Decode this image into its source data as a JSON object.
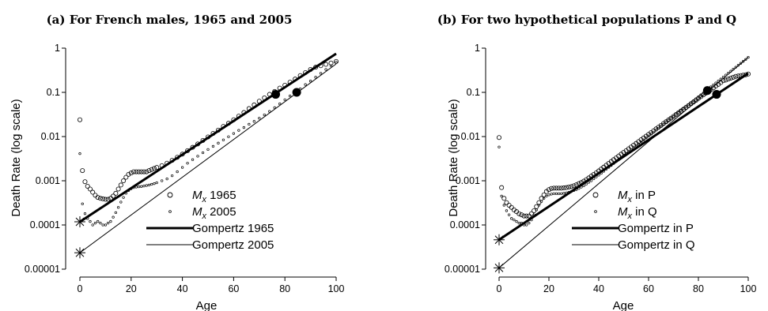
{
  "chart_data": [
    {
      "type": "scatter",
      "title": "(a) For French males, 1965 and 2005",
      "xlabel": "Age",
      "ylabel": "Death Rate (log scale)",
      "y_scale": "log",
      "xlim": [
        0,
        100
      ],
      "ylim": [
        1e-05,
        1
      ],
      "xticks": [
        "0",
        "20",
        "40",
        "60",
        "80",
        "100"
      ],
      "yticks": [
        "0.00001",
        "0.0001",
        "0.001",
        "0.01",
        "0.1",
        "1"
      ],
      "grid": false,
      "legend_position": "bottom-right",
      "legend": [
        {
          "sym": "M",
          "sub": "x",
          "rest": " 1965",
          "marker": "open-circle-large"
        },
        {
          "sym": "M",
          "sub": "x",
          "rest": " 2005",
          "marker": "open-circle-small"
        },
        {
          "label": "Gompertz 1965",
          "marker": "thick-line"
        },
        {
          "label": "Gompertz 2005",
          "marker": "thin-line"
        }
      ],
      "series": [
        {
          "name": "Mx 1965",
          "style": "open-circle-large",
          "x": [
            0,
            1,
            2,
            3,
            4,
            5,
            6,
            7,
            8,
            9,
            10,
            11,
            12,
            13,
            14,
            15,
            16,
            17,
            18,
            19,
            20,
            21,
            22,
            23,
            24,
            25,
            26,
            27,
            28,
            29,
            30,
            32,
            34,
            36,
            38,
            40,
            42,
            44,
            46,
            48,
            50,
            52,
            54,
            56,
            58,
            60,
            62,
            64,
            66,
            68,
            70,
            72,
            74,
            76,
            78,
            80,
            82,
            84,
            86,
            88,
            90,
            92,
            94,
            96,
            98,
            100
          ],
          "y": [
            0.024,
            0.0017,
            0.00095,
            0.00075,
            0.00065,
            0.00055,
            0.00047,
            0.00042,
            0.0004,
            0.00039,
            0.00038,
            0.00038,
            0.0004,
            0.00045,
            0.00052,
            0.00065,
            0.0008,
            0.001,
            0.0012,
            0.0014,
            0.0015,
            0.0016,
            0.0016,
            0.0016,
            0.0016,
            0.0016,
            0.0016,
            0.0017,
            0.0018,
            0.0019,
            0.002,
            0.0022,
            0.0025,
            0.0029,
            0.0034,
            0.004,
            0.0048,
            0.0057,
            0.0068,
            0.0082,
            0.0098,
            0.0118,
            0.014,
            0.017,
            0.02,
            0.024,
            0.029,
            0.035,
            0.043,
            0.052,
            0.063,
            0.075,
            0.09,
            0.105,
            0.125,
            0.145,
            0.17,
            0.2,
            0.24,
            0.28,
            0.33,
            0.37,
            0.4,
            0.43,
            0.46,
            0.5
          ]
        },
        {
          "name": "Mx 2005",
          "style": "open-circle-small",
          "x": [
            0,
            1,
            2,
            3,
            4,
            5,
            6,
            7,
            8,
            9,
            10,
            11,
            12,
            13,
            14,
            15,
            16,
            17,
            18,
            19,
            20,
            21,
            22,
            23,
            24,
            25,
            26,
            27,
            28,
            29,
            30,
            32,
            34,
            36,
            38,
            40,
            42,
            44,
            46,
            48,
            50,
            52,
            54,
            56,
            58,
            60,
            62,
            64,
            66,
            68,
            70,
            72,
            74,
            76,
            78,
            80,
            82,
            84,
            86,
            88,
            90,
            92,
            94,
            96,
            98,
            100
          ],
          "y": [
            0.0041,
            0.0003,
            0.00018,
            0.00014,
            0.00012,
            0.0001,
            0.00011,
            0.00012,
            0.00011,
            0.0001,
            0.0001,
            0.00011,
            0.00012,
            0.00015,
            0.00019,
            0.00025,
            0.00033,
            0.00042,
            0.00052,
            0.0006,
            0.00066,
            0.0007,
            0.00072,
            0.00073,
            0.00074,
            0.00076,
            0.00078,
            0.0008,
            0.00083,
            0.00086,
            0.0009,
            0.001,
            0.0011,
            0.0013,
            0.0016,
            0.002,
            0.0025,
            0.003,
            0.0036,
            0.0043,
            0.0051,
            0.006,
            0.0071,
            0.0084,
            0.0099,
            0.0117,
            0.0138,
            0.016,
            0.019,
            0.022,
            0.026,
            0.031,
            0.037,
            0.045,
            0.055,
            0.068,
            0.083,
            0.1,
            0.12,
            0.15,
            0.18,
            0.22,
            0.27,
            0.33,
            0.4,
            0.48
          ]
        },
        {
          "name": "Gompertz 1965",
          "style": "thick-line",
          "x": [
            0,
            100
          ],
          "y": [
            0.000118,
            0.75
          ]
        },
        {
          "name": "Gompertz 2005",
          "style": "thin-line",
          "x": [
            0,
            100
          ],
          "y": [
            2.35e-05,
            0.44
          ]
        }
      ],
      "markers": [
        {
          "x": 0,
          "y": 0.000118,
          "shape": "asterisk"
        },
        {
          "x": 0,
          "y": 2.35e-05,
          "shape": "asterisk"
        },
        {
          "x": 76.4,
          "y": 0.09,
          "shape": "filled-circle"
        },
        {
          "x": 84.6,
          "y": 0.1,
          "shape": "filled-circle"
        }
      ]
    },
    {
      "type": "scatter",
      "title": "(b) For two hypothetical populations P and Q",
      "xlabel": "Age",
      "ylabel": "Death Rate (log scale)",
      "y_scale": "log",
      "xlim": [
        0,
        100
      ],
      "ylim": [
        1e-05,
        1
      ],
      "xticks": [
        "0",
        "20",
        "40",
        "60",
        "80",
        "100"
      ],
      "yticks": [
        "0.00001",
        "0.0001",
        "0.001",
        "0.01",
        "0.1",
        "1"
      ],
      "grid": false,
      "legend_position": "bottom-right",
      "legend": [
        {
          "sym": "M",
          "sub": "x",
          "rest": " in P",
          "marker": "open-circle-large"
        },
        {
          "sym": "M",
          "sub": "x",
          "rest": " in Q",
          "marker": "open-circle-small"
        },
        {
          "label": "Gompertz in P",
          "marker": "thick-line"
        },
        {
          "label": "Gompertz in Q",
          "marker": "thin-line"
        }
      ],
      "series": [
        {
          "name": "Mx in P",
          "style": "open-circle-large",
          "x": [
            0,
            1,
            2,
            3,
            4,
            5,
            6,
            7,
            8,
            9,
            10,
            11,
            12,
            13,
            14,
            15,
            16,
            17,
            18,
            19,
            20,
            21,
            22,
            23,
            24,
            25,
            26,
            27,
            28,
            29,
            30,
            31,
            32,
            33,
            34,
            35,
            36,
            37,
            38,
            39,
            40,
            41,
            42,
            43,
            44,
            45,
            46,
            47,
            48,
            49,
            50,
            51,
            52,
            53,
            54,
            55,
            56,
            57,
            58,
            59,
            60,
            61,
            62,
            63,
            64,
            65,
            66,
            67,
            68,
            69,
            70,
            71,
            72,
            73,
            74,
            75,
            76,
            77,
            78,
            79,
            80,
            81,
            82,
            83,
            84,
            85,
            86,
            87,
            88,
            89,
            90,
            91,
            92,
            93,
            94,
            95,
            96,
            97,
            98,
            99,
            100
          ],
          "y": [
            0.0095,
            0.0007,
            0.0004,
            0.00032,
            0.00028,
            0.00025,
            0.00022,
            0.0002,
            0.00018,
            0.00017,
            0.00016,
            0.00016,
            0.00016,
            0.00018,
            0.00021,
            0.00026,
            0.00032,
            0.0004,
            0.00048,
            0.00057,
            0.00063,
            0.00067,
            0.00068,
            0.00068,
            0.00068,
            0.00068,
            0.00069,
            0.0007,
            0.00072,
            0.00074,
            0.00077,
            0.00081,
            0.00086,
            0.00091,
            0.00098,
            0.00106,
            0.00116,
            0.00127,
            0.00139,
            0.00152,
            0.00167,
            0.00184,
            0.00203,
            0.00224,
            0.00247,
            0.00272,
            0.003,
            0.0033,
            0.00364,
            0.004,
            0.0044,
            0.0048,
            0.0053,
            0.0058,
            0.0064,
            0.007,
            0.0077,
            0.0085,
            0.0093,
            0.0102,
            0.0112,
            0.0123,
            0.0135,
            0.0149,
            0.0163,
            0.0179,
            0.0197,
            0.0216,
            0.0237,
            0.026,
            0.0286,
            0.0314,
            0.0345,
            0.0378,
            0.0415,
            0.0456,
            0.05,
            0.055,
            0.06,
            0.066,
            0.073,
            0.08,
            0.088,
            0.096,
            0.105,
            0.115,
            0.126,
            0.139,
            0.152,
            0.167,
            0.183,
            0.19,
            0.2,
            0.21,
            0.22,
            0.23,
            0.235,
            0.24,
            0.245,
            0.25,
            0.26
          ]
        },
        {
          "name": "Mx in Q",
          "style": "open-circle-small",
          "x": [
            0,
            1,
            2,
            3,
            4,
            5,
            6,
            7,
            8,
            9,
            10,
            11,
            12,
            13,
            14,
            15,
            16,
            17,
            18,
            19,
            20,
            21,
            22,
            23,
            24,
            25,
            26,
            27,
            28,
            29,
            30,
            31,
            32,
            33,
            34,
            35,
            36,
            37,
            38,
            39,
            40,
            41,
            42,
            43,
            44,
            45,
            46,
            47,
            48,
            49,
            50,
            51,
            52,
            53,
            54,
            55,
            56,
            57,
            58,
            59,
            60,
            61,
            62,
            63,
            64,
            65,
            66,
            67,
            68,
            69,
            70,
            71,
            72,
            73,
            74,
            75,
            76,
            77,
            78,
            79,
            80,
            81,
            82,
            83,
            84,
            85,
            86,
            87,
            88,
            89,
            90,
            91,
            92,
            93,
            94,
            95,
            96,
            97,
            98,
            99,
            100
          ],
          "y": [
            0.0058,
            0.00045,
            0.00028,
            0.00021,
            0.00017,
            0.00014,
            0.00013,
            0.00012,
            0.00011,
            0.00011,
            0.0001,
            0.0001,
            0.00011,
            0.00013,
            0.00017,
            0.00022,
            0.00028,
            0.00034,
            0.0004,
            0.00045,
            0.00048,
            0.0005,
            0.00051,
            0.00051,
            0.00051,
            0.00051,
            0.00052,
            0.00053,
            0.00055,
            0.00057,
            0.0006,
            0.00063,
            0.00067,
            0.00072,
            0.00077,
            0.00084,
            0.00092,
            0.001,
            0.00111,
            0.00122,
            0.00134,
            0.00148,
            0.00164,
            0.00182,
            0.00201,
            0.00222,
            0.00246,
            0.00272,
            0.00301,
            0.00333,
            0.0037,
            0.0041,
            0.0045,
            0.005,
            0.0056,
            0.0062,
            0.0068,
            0.0076,
            0.0084,
            0.0093,
            0.0103,
            0.0114,
            0.0126,
            0.014,
            0.0155,
            0.0172,
            0.019,
            0.021,
            0.0233,
            0.0258,
            0.0285,
            0.0316,
            0.035,
            0.0388,
            0.043,
            0.0476,
            0.0527,
            0.0584,
            0.0647,
            0.0717,
            0.0794,
            0.088,
            0.0975,
            0.108,
            0.12,
            0.133,
            0.147,
            0.163,
            0.18,
            0.2,
            0.222,
            0.246,
            0.272,
            0.301,
            0.334,
            0.37,
            0.41,
            0.454,
            0.503,
            0.557,
            0.62
          ]
        },
        {
          "name": "Gompertz in P",
          "style": "thick-line",
          "x": [
            0,
            100
          ],
          "y": [
            4.62e-05,
            0.27
          ]
        },
        {
          "name": "Gompertz in Q",
          "style": "thin-line",
          "x": [
            0,
            100
          ],
          "y": [
            1.07e-05,
            0.62
          ]
        }
      ],
      "markers": [
        {
          "x": 0,
          "y": 4.62e-05,
          "shape": "asterisk"
        },
        {
          "x": 0,
          "y": 1.07e-05,
          "shape": "asterisk"
        },
        {
          "x": 83.6,
          "y": 0.11,
          "shape": "filled-circle"
        },
        {
          "x": 87.3,
          "y": 0.09,
          "shape": "filled-circle"
        }
      ]
    }
  ]
}
